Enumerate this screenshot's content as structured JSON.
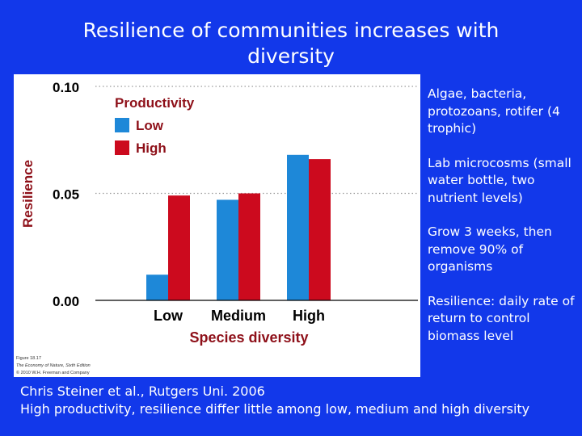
{
  "slide": {
    "title": "Resilience of communities increases with diversity",
    "notes": [
      "Algae, bacteria, protozoans, rotifer (4 trophic)",
      "Lab microcosms (small water bottle, two nutrient levels)",
      "Grow 3 weeks, then remove 90% of organisms",
      "Resilience: daily rate of return to control biomass level"
    ],
    "citation": "Chris Steiner et al., Rutgers Uni. 2006",
    "conclusion": "High productivity, resilience differ little among low, medium and high diversity",
    "figure_credit": [
      "Figure 18.17",
      "The Economy of Nature, Sixth Edition",
      "© 2010 W.H. Freeman and Company"
    ]
  },
  "colors": {
    "background": "#1238ea",
    "low": "#1e88d8",
    "high": "#cc0a1e"
  },
  "chart_data": {
    "type": "bar",
    "categories": [
      "Low",
      "Medium",
      "High"
    ],
    "series": [
      {
        "name": "Low",
        "values": [
          0.012,
          0.047,
          0.068
        ]
      },
      {
        "name": "High",
        "values": [
          0.049,
          0.05,
          0.066
        ]
      }
    ],
    "legend_title": "Productivity",
    "legend_position": "top-left",
    "xlabel": "Species diversity",
    "ylabel": "Resilience",
    "ylim": [
      0,
      0.1
    ],
    "yticks": [
      "0.00",
      "0.05",
      "0.10"
    ],
    "gridlines": true
  }
}
